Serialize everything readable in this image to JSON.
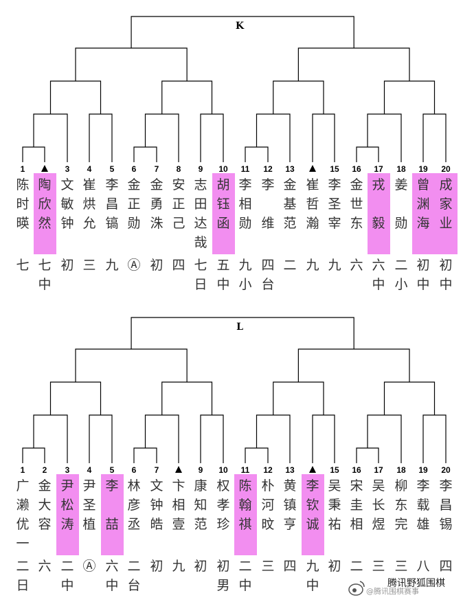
{
  "sections": [
    {
      "label": "K",
      "players": [
        {
          "num": "1",
          "name": [
            "陈",
            "时",
            "暎"
          ],
          "rank": [
            "七"
          ],
          "highlight": false
        },
        {
          "num": "▲",
          "name": [
            "陶",
            "欣",
            "然"
          ],
          "rank": [
            "七",
            "中"
          ],
          "highlight": true
        },
        {
          "num": "3",
          "name": [
            "文",
            "敏",
            "钟"
          ],
          "rank": [
            "初"
          ],
          "highlight": false
        },
        {
          "num": "4",
          "name": [
            "崔",
            "烘",
            "允"
          ],
          "rank": [
            "三"
          ],
          "highlight": false
        },
        {
          "num": "5",
          "name": [
            "李",
            "昌",
            "镐"
          ],
          "rank": [
            "九"
          ],
          "highlight": false
        },
        {
          "num": "6",
          "name": [
            "金",
            "正",
            "勋"
          ],
          "rank": [
            "Ⓐ"
          ],
          "highlight": false
        },
        {
          "num": "7",
          "name": [
            "金",
            "勇",
            "洙"
          ],
          "rank": [
            "初"
          ],
          "highlight": false
        },
        {
          "num": "8",
          "name": [
            "安",
            "正",
            "己"
          ],
          "rank": [
            "四"
          ],
          "highlight": false
        },
        {
          "num": "9",
          "name": [
            "志",
            "田",
            "达",
            "哉"
          ],
          "rank": [
            "七",
            "日"
          ],
          "highlight": false
        },
        {
          "num": "10",
          "name": [
            "胡",
            "钰",
            "函"
          ],
          "rank": [
            "五",
            "中"
          ],
          "highlight": true
        },
        {
          "num": "11",
          "name": [
            "李",
            "相",
            "勋"
          ],
          "rank": [
            "九",
            "小"
          ],
          "highlight": false
        },
        {
          "num": "12",
          "name": [
            "李",
            "",
            "维"
          ],
          "rank": [
            "四",
            "台"
          ],
          "highlight": false
        },
        {
          "num": "13",
          "name": [
            "金",
            "基",
            "范"
          ],
          "rank": [
            "二"
          ],
          "highlight": false
        },
        {
          "num": "▲",
          "name": [
            "崔",
            "哲",
            "瀚"
          ],
          "rank": [
            "九"
          ],
          "highlight": false
        },
        {
          "num": "15",
          "name": [
            "李",
            "圣",
            "宰"
          ],
          "rank": [
            "九"
          ],
          "highlight": false
        },
        {
          "num": "16",
          "name": [
            "金",
            "世",
            "东"
          ],
          "rank": [
            "六"
          ],
          "highlight": false
        },
        {
          "num": "17",
          "name": [
            "戎",
            "",
            "毅"
          ],
          "rank": [
            "六",
            "中"
          ],
          "highlight": true
        },
        {
          "num": "18",
          "name": [
            "姜",
            "",
            "勋"
          ],
          "rank": [
            "二",
            "小"
          ],
          "highlight": false
        },
        {
          "num": "19",
          "name": [
            "曾",
            "渊",
            "海"
          ],
          "rank": [
            "初",
            "中"
          ],
          "highlight": true
        },
        {
          "num": "20",
          "name": [
            "成",
            "家",
            "业"
          ],
          "rank": [
            "初",
            "中"
          ],
          "highlight": true
        }
      ]
    },
    {
      "label": "L",
      "players": [
        {
          "num": "1",
          "name": [
            "广",
            "濑",
            "优",
            "一"
          ],
          "rank": [
            "二",
            "日"
          ],
          "highlight": false
        },
        {
          "num": "2",
          "name": [
            "金",
            "大",
            "容"
          ],
          "rank": [
            "六"
          ],
          "highlight": false
        },
        {
          "num": "3",
          "name": [
            "尹",
            "松",
            "涛"
          ],
          "rank": [
            "二",
            "中"
          ],
          "highlight": true
        },
        {
          "num": "4",
          "name": [
            "尹",
            "圣",
            "植"
          ],
          "rank": [
            "Ⓐ"
          ],
          "highlight": false
        },
        {
          "num": "5",
          "name": [
            "李",
            "",
            "喆"
          ],
          "rank": [
            "六",
            "中"
          ],
          "highlight": true
        },
        {
          "num": "6",
          "name": [
            "林",
            "彦",
            "丞"
          ],
          "rank": [
            "二",
            "台"
          ],
          "highlight": false
        },
        {
          "num": "7",
          "name": [
            "文",
            "钟",
            "皓"
          ],
          "rank": [
            "初"
          ],
          "highlight": false
        },
        {
          "num": "▲",
          "name": [
            "卞",
            "相",
            "壹"
          ],
          "rank": [
            "九"
          ],
          "highlight": false
        },
        {
          "num": "9",
          "name": [
            "康",
            "知",
            "范"
          ],
          "rank": [
            "初"
          ],
          "highlight": false
        },
        {
          "num": "10",
          "name": [
            "权",
            "孝",
            "珍"
          ],
          "rank": [
            "初",
            "男"
          ],
          "highlight": false
        },
        {
          "num": "11",
          "name": [
            "陈",
            "翰",
            "祺"
          ],
          "rank": [
            "二",
            "中"
          ],
          "highlight": true
        },
        {
          "num": "12",
          "name": [
            "朴",
            "河",
            "旼"
          ],
          "rank": [
            "三"
          ],
          "highlight": false
        },
        {
          "num": "13",
          "name": [
            "黄",
            "镇",
            "亨"
          ],
          "rank": [
            "四"
          ],
          "highlight": false
        },
        {
          "num": "▲",
          "name": [
            "李",
            "钦",
            "诚"
          ],
          "rank": [
            "九",
            "中"
          ],
          "highlight": true
        },
        {
          "num": "15",
          "name": [
            "吴",
            "秉",
            "祐"
          ],
          "rank": [
            "初"
          ],
          "highlight": false
        },
        {
          "num": "16",
          "name": [
            "宋",
            "圭",
            "相"
          ],
          "rank": [
            "二"
          ],
          "highlight": false
        },
        {
          "num": "17",
          "name": [
            "吴",
            "长",
            "煜"
          ],
          "rank": [
            "三"
          ],
          "highlight": false
        },
        {
          "num": "18",
          "name": [
            "柳",
            "东",
            "完"
          ],
          "rank": [
            "三"
          ],
          "highlight": false
        },
        {
          "num": "19",
          "name": [
            "李",
            "载",
            "雄"
          ],
          "rank": [
            "八"
          ],
          "highlight": false
        },
        {
          "num": "20",
          "name": [
            "李",
            "昌",
            "锡"
          ],
          "rank": [
            "四"
          ],
          "highlight": false
        }
      ]
    }
  ],
  "watermark": {
    "icon": "weibo-icon",
    "text": "腾讯野狐围棋",
    "sub": "@腾讯围棋赛事"
  },
  "colors": {
    "highlight": "#f28ef0",
    "line": "#000000",
    "text": "#333333"
  }
}
